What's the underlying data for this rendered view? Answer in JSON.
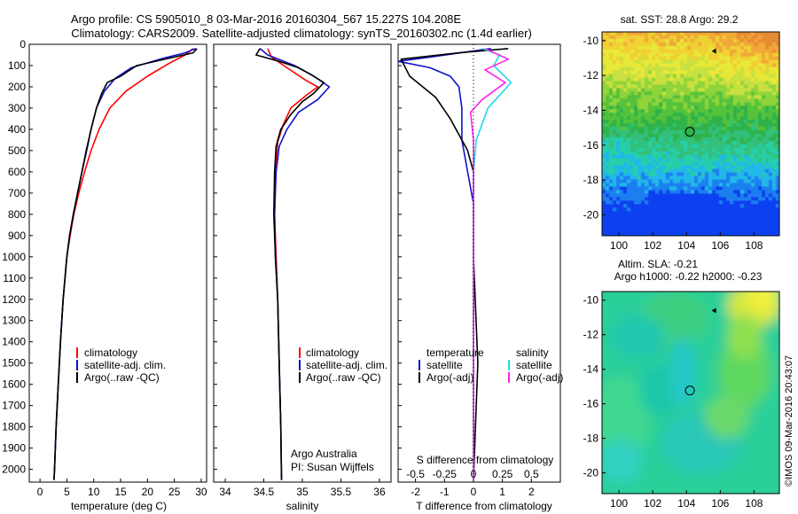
{
  "header": {
    "title_line1": "Argo profile: CS 5905010_8 03-Mar-2016 20160304_567 15.227S 104.208E",
    "title_line2": "Climatology: CARS2009. Satellite-adjusted climatology: synTS_20160302.nc (1.4d earlier)"
  },
  "colors": {
    "climatology": "#ff0000",
    "satellite": "#1010cc",
    "argo": "#000000",
    "sat_salinity": "#22d8e6",
    "argo_salinity": "#ff22ee"
  },
  "chart_data": [
    {
      "type": "line",
      "panel": "temperature",
      "xlabel": "temperature (deg C)",
      "ylabel": "",
      "xlim": [
        -2,
        31
      ],
      "ylim": [
        2060,
        0
      ],
      "xticks": [
        0,
        5,
        10,
        15,
        20,
        25,
        30
      ],
      "yticks": [
        0,
        100,
        200,
        300,
        400,
        500,
        600,
        700,
        800,
        900,
        1000,
        1100,
        1200,
        1300,
        1400,
        1500,
        1600,
        1700,
        1800,
        1900,
        2000
      ],
      "grid": false,
      "legend": [
        "climatology",
        "satellite-adj. clim.",
        "Argo(..raw -QC)"
      ],
      "legend_position": "lower-middle",
      "series": [
        {
          "name": "climatology",
          "color": "#ff0000",
          "points": [
            [
              28.5,
              20
            ],
            [
              27,
              50
            ],
            [
              24,
              90
            ],
            [
              20,
              150
            ],
            [
              16,
              220
            ],
            [
              13,
              300
            ],
            [
              11,
              400
            ],
            [
              9.5,
              500
            ],
            [
              8.3,
              600
            ],
            [
              7.2,
              700
            ],
            [
              6.3,
              800
            ],
            [
              5.6,
              900
            ],
            [
              5,
              1000
            ],
            [
              4.3,
              1200
            ],
            [
              3.8,
              1400
            ],
            [
              3.4,
              1600
            ],
            [
              3.0,
              1800
            ],
            [
              2.7,
              2000
            ],
            [
              2.6,
              2050
            ]
          ]
        },
        {
          "name": "satellite-adj. clim.",
          "color": "#1010cc",
          "points": [
            [
              29,
              20
            ],
            [
              27,
              40
            ],
            [
              23,
              65
            ],
            [
              17,
              110
            ],
            [
              14,
              160
            ],
            [
              12,
              220
            ],
            [
              10.5,
              300
            ],
            [
              9.5,
              400
            ],
            [
              8.7,
              500
            ],
            [
              7.8,
              600
            ],
            [
              7,
              700
            ],
            [
              6.2,
              800
            ],
            [
              5.5,
              900
            ],
            [
              5,
              1000
            ],
            [
              4.3,
              1200
            ],
            [
              3.8,
              1400
            ],
            [
              3.4,
              1600
            ],
            [
              3,
              1800
            ],
            [
              2.7,
              2000
            ],
            [
              2.6,
              2050
            ]
          ]
        },
        {
          "name": "Argo(..raw -QC)",
          "color": "#000000",
          "points": [
            [
              29.2,
              20
            ],
            [
              28.5,
              40
            ],
            [
              25,
              60
            ],
            [
              18,
              100
            ],
            [
              15,
              150
            ],
            [
              12.5,
              180
            ],
            [
              11.5,
              230
            ],
            [
              10.5,
              300
            ],
            [
              9.5,
              400
            ],
            [
              8.6,
              500
            ],
            [
              7.8,
              600
            ],
            [
              7,
              700
            ],
            [
              6.2,
              800
            ],
            [
              5.5,
              900
            ],
            [
              5,
              1000
            ],
            [
              4.3,
              1200
            ],
            [
              3.8,
              1400
            ],
            [
              3.4,
              1600
            ],
            [
              3,
              1800
            ],
            [
              2.7,
              2000
            ],
            [
              2.6,
              2050
            ]
          ]
        }
      ]
    },
    {
      "type": "line",
      "panel": "salinity",
      "xlabel": "salinity",
      "ylabel": "",
      "xlim": [
        33.85,
        36.15
      ],
      "ylim": [
        2060,
        0
      ],
      "xticks": [
        34,
        34.5,
        35,
        35.5,
        36
      ],
      "grid": false,
      "legend": [
        "climatology",
        "satellite-adj. clim.",
        "Argo(..raw -QC)"
      ],
      "legend_position": "lower-right",
      "annotations": [
        "Argo Australia",
        "PI: Susan Wijffels"
      ],
      "series": [
        {
          "name": "climatology",
          "color": "#ff0000",
          "points": [
            [
              34.55,
              20
            ],
            [
              34.6,
              60
            ],
            [
              34.8,
              110
            ],
            [
              35.05,
              170
            ],
            [
              35.2,
              200
            ],
            [
              35.05,
              240
            ],
            [
              34.85,
              300
            ],
            [
              34.75,
              380
            ],
            [
              34.68,
              460
            ],
            [
              34.65,
              600
            ],
            [
              34.64,
              800
            ],
            [
              34.66,
              1000
            ],
            [
              34.68,
              1200
            ],
            [
              34.7,
              1500
            ],
            [
              34.72,
              1800
            ],
            [
              34.73,
              2050
            ]
          ]
        },
        {
          "name": "satellite-adj. clim.",
          "color": "#1010cc",
          "points": [
            [
              34.45,
              20
            ],
            [
              34.55,
              50
            ],
            [
              34.9,
              100
            ],
            [
              35.15,
              150
            ],
            [
              35.35,
              200
            ],
            [
              35.2,
              260
            ],
            [
              34.95,
              320
            ],
            [
              34.8,
              400
            ],
            [
              34.7,
              480
            ],
            [
              34.66,
              600
            ],
            [
              34.64,
              800
            ],
            [
              34.65,
              1000
            ],
            [
              34.68,
              1200
            ],
            [
              34.7,
              1500
            ],
            [
              34.72,
              1800
            ],
            [
              34.73,
              2050
            ]
          ]
        },
        {
          "name": "Argo(..raw -QC)",
          "color": "#000000",
          "points": [
            [
              34.45,
              20
            ],
            [
              34.4,
              50
            ],
            [
              34.7,
              80
            ],
            [
              34.95,
              110
            ],
            [
              35.1,
              140
            ],
            [
              35.28,
              180
            ],
            [
              35.15,
              230
            ],
            [
              35.0,
              270
            ],
            [
              34.85,
              330
            ],
            [
              34.72,
              400
            ],
            [
              34.66,
              480
            ],
            [
              34.64,
              600
            ],
            [
              34.63,
              800
            ],
            [
              34.65,
              1000
            ],
            [
              34.68,
              1200
            ],
            [
              34.7,
              1500
            ],
            [
              34.72,
              1800
            ],
            [
              34.73,
              2050
            ]
          ]
        }
      ]
    },
    {
      "type": "line",
      "panel": "difference",
      "xlabel": "T difference from climatology",
      "xlabel_top": "S difference from climatology",
      "ylabel": "",
      "xlim": [
        -2.6,
        3.0
      ],
      "ylim": [
        2060,
        0
      ],
      "xticks": [
        -2,
        -1,
        0,
        1,
        2
      ],
      "s_ticks": [
        -0.5,
        -0.25,
        0,
        0.25,
        0.5
      ],
      "s_ticklabels": [
        "-0.5",
        "-0.25",
        "0",
        "0.25",
        "0.5"
      ],
      "grid": false,
      "legend_temperature_title": "temperature",
      "legend_salinity_title": "salinity",
      "legend_temperature": [
        "satellite",
        "Argo(-adj)"
      ],
      "legend_salinity": [
        "satellite",
        "Argo(-adj)"
      ],
      "legend_position": "lower",
      "series": [
        {
          "name": "satellite",
          "color": "#1010cc",
          "points": [
            [
              0.6,
              20
            ],
            [
              -1.5,
              60
            ],
            [
              -2.6,
              80
            ],
            [
              -1.5,
              110
            ],
            [
              -0.8,
              150
            ],
            [
              -0.5,
              200
            ],
            [
              -0.4,
              300
            ],
            [
              -0.4,
              450
            ],
            [
              -0.2,
              600
            ],
            [
              0,
              750
            ],
            [
              0,
              1000
            ],
            [
              0,
              1500
            ],
            [
              0,
              2050
            ]
          ]
        },
        {
          "name": "Argo(-adj)",
          "color": "#000000",
          "points": [
            [
              1.2,
              20
            ],
            [
              -0.5,
              40
            ],
            [
              -2.5,
              70
            ],
            [
              -2.2,
              150
            ],
            [
              -1.3,
              250
            ],
            [
              -0.8,
              350
            ],
            [
              -0.2,
              500
            ],
            [
              0,
              600
            ],
            [
              0,
              800
            ],
            [
              0,
              1000
            ],
            [
              0.15,
              1500
            ],
            [
              0,
              2050
            ]
          ]
        },
        {
          "name": "satellite",
          "color": "#22d8e6",
          "points": [
            [
              0.3,
              20
            ],
            [
              0.9,
              50
            ],
            [
              0.7,
              100
            ],
            [
              1.3,
              180
            ],
            [
              0.5,
              300
            ],
            [
              0.1,
              450
            ],
            [
              0,
              600
            ],
            [
              0,
              1000
            ],
            [
              0,
              2050
            ]
          ]
        },
        {
          "name": "Argo(-adj)",
          "color": "#ff22ee",
          "points": [
            [
              0.4,
              20
            ],
            [
              1.2,
              70
            ],
            [
              0.4,
              120
            ],
            [
              1.1,
              180
            ],
            [
              0.3,
              260
            ],
            [
              -0.1,
              320
            ],
            [
              0,
              450
            ],
            [
              0,
              600
            ],
            [
              0,
              1000
            ],
            [
              0,
              2050
            ]
          ]
        }
      ]
    },
    {
      "type": "heatmap",
      "panel": "sst_map",
      "title": "sat. SST: 28.8 Argo: 29.2",
      "xlim": [
        99,
        109.5
      ],
      "ylim": [
        -21.2,
        -9.5
      ],
      "xticks": [
        100,
        102,
        104,
        106,
        108
      ],
      "yticks": [
        -10,
        -12,
        -14,
        -16,
        -18,
        -20
      ],
      "profile_marker": [
        104.2,
        -15.23
      ],
      "track_marker": [
        105.7,
        -10.6
      ]
    },
    {
      "type": "heatmap",
      "panel": "sla_map",
      "title_line1": "Altim. SLA: -0.21",
      "title_line2": "Argo h1000: -0.22 h2000: -0.23",
      "xlim": [
        99,
        109.5
      ],
      "ylim": [
        -21.2,
        -9.5
      ],
      "xticks": [
        100,
        102,
        104,
        106,
        108
      ],
      "yticks": [
        -10,
        -12,
        -14,
        -16,
        -18,
        -20
      ],
      "profile_marker": [
        104.2,
        -15.23
      ],
      "track_marker": [
        105.7,
        -10.6
      ]
    }
  ],
  "footer": {
    "stamp": "©IMOS 09-Mar-2016 20:43:07"
  }
}
